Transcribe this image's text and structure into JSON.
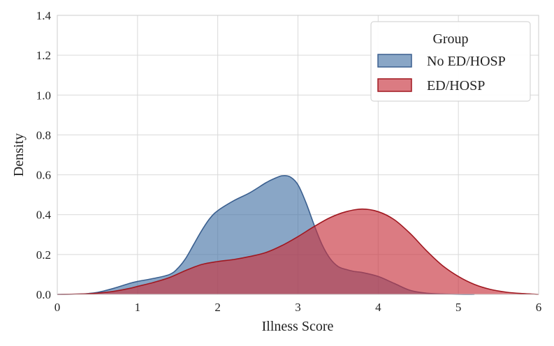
{
  "chart_data": {
    "type": "area",
    "title": "",
    "xlabel": "Illness Score",
    "ylabel": "Density",
    "xlim": [
      0,
      6
    ],
    "ylim": [
      0,
      1.4
    ],
    "xticks": [
      "0",
      "1",
      "2",
      "3",
      "4",
      "5",
      "6"
    ],
    "yticks": [
      "0.0",
      "0.2",
      "0.4",
      "0.6",
      "0.8",
      "1.0",
      "1.2",
      "1.4"
    ],
    "grid": true,
    "legend": {
      "title": "Group",
      "position": "top-right"
    },
    "series": [
      {
        "name": "No ED/HOSP",
        "color": "#4a77a8",
        "edge": "#3a5f8f",
        "x": [
          0.0,
          0.3,
          0.5,
          0.7,
          0.9,
          1.0,
          1.2,
          1.4,
          1.5,
          1.6,
          1.7,
          1.8,
          1.9,
          2.0,
          2.2,
          2.4,
          2.6,
          2.7,
          2.8,
          2.9,
          3.0,
          3.1,
          3.2,
          3.3,
          3.4,
          3.5,
          3.6,
          3.7,
          3.8,
          4.0,
          4.2,
          4.4,
          4.6,
          4.8,
          5.0,
          5.2
        ],
        "y": [
          0.0,
          0.002,
          0.01,
          0.03,
          0.055,
          0.065,
          0.08,
          0.1,
          0.13,
          0.18,
          0.25,
          0.32,
          0.38,
          0.42,
          0.47,
          0.51,
          0.56,
          0.58,
          0.595,
          0.59,
          0.55,
          0.46,
          0.35,
          0.25,
          0.18,
          0.14,
          0.125,
          0.115,
          0.11,
          0.09,
          0.055,
          0.02,
          0.006,
          0.002,
          0.0,
          0.0
        ]
      },
      {
        "name": "ED/HOSP",
        "color": "#c8343f",
        "edge": "#a01820",
        "x": [
          0.0,
          0.3,
          0.5,
          0.7,
          0.9,
          1.0,
          1.2,
          1.4,
          1.6,
          1.8,
          2.0,
          2.2,
          2.4,
          2.6,
          2.8,
          3.0,
          3.2,
          3.4,
          3.6,
          3.8,
          4.0,
          4.2,
          4.4,
          4.6,
          4.8,
          5.0,
          5.2,
          5.4,
          5.6,
          5.8,
          6.0
        ],
        "y": [
          0.0,
          0.002,
          0.006,
          0.015,
          0.03,
          0.04,
          0.06,
          0.085,
          0.12,
          0.15,
          0.165,
          0.175,
          0.19,
          0.21,
          0.245,
          0.29,
          0.34,
          0.385,
          0.415,
          0.428,
          0.415,
          0.375,
          0.305,
          0.22,
          0.145,
          0.09,
          0.05,
          0.025,
          0.011,
          0.004,
          0.0
        ]
      }
    ]
  }
}
